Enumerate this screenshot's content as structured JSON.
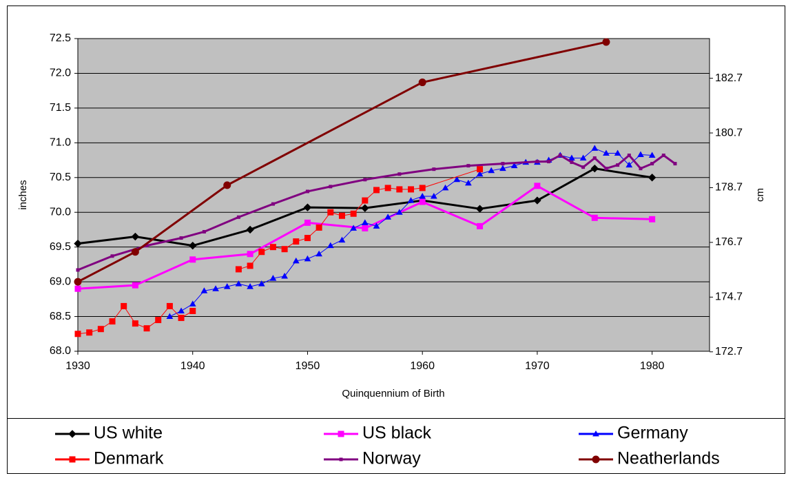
{
  "chart_data": {
    "type": "line",
    "x_label": "Quinquennium of Birth",
    "y_label": "inches",
    "y2_label": "cm",
    "xlim": [
      1930,
      1985
    ],
    "xticks": [
      1930,
      1940,
      1950,
      1960,
      1970,
      1980
    ],
    "ylim": [
      68,
      72.5
    ],
    "yticks": [
      {
        "value": 68,
        "label": "68.0"
      },
      68.5,
      {
        "value": 69,
        "label": "69.0"
      },
      69.5,
      {
        "value": 70,
        "label": "70.0"
      },
      70.5,
      {
        "value": 71,
        "label": "71.0"
      },
      71.5,
      {
        "value": 72,
        "label": "72.0"
      },
      72.5
    ],
    "y2lim": [
      172.72,
      184.15
    ],
    "y2ticks": [
      172.7,
      174.7,
      176.7,
      178.7,
      180.7,
      182.7
    ],
    "grid": true,
    "legend": "bottom",
    "series": [
      {
        "name": "US white",
        "color": "#000000",
        "marker": "diamond",
        "x": [
          1930,
          1935,
          1940,
          1945,
          1950,
          1955,
          1960,
          1965,
          1970,
          1975,
          1980
        ],
        "values": [
          69.55,
          69.65,
          69.52,
          69.75,
          70.07,
          70.06,
          70.17,
          70.05,
          70.17,
          70.63,
          70.5
        ]
      },
      {
        "name": "US black",
        "color": "#ff00ff",
        "marker": "square",
        "x": [
          1930,
          1935,
          1940,
          1945,
          1950,
          1955,
          1960,
          1965,
          1970,
          1975,
          1980
        ],
        "values": [
          68.9,
          68.95,
          69.32,
          69.4,
          69.85,
          69.77,
          70.15,
          69.8,
          70.38,
          69.92,
          69.9
        ]
      },
      {
        "name": "Germany",
        "color": "#0000ff",
        "marker": "triangle",
        "x": [
          1938,
          1939,
          1940,
          1941,
          1942,
          1943,
          1944,
          1945,
          1946,
          1947,
          1948,
          1949,
          1950,
          1951,
          1952,
          1953,
          1954,
          1955,
          1956,
          1957,
          1958,
          1959,
          1960,
          1961,
          1962,
          1963,
          1964,
          1965,
          1966,
          1967,
          1968,
          1969,
          1970,
          1971,
          1972,
          1973,
          1974,
          1975,
          1976,
          1977,
          1978,
          1979,
          1980
        ],
        "values": [
          68.5,
          68.58,
          68.68,
          68.87,
          68.9,
          68.93,
          68.97,
          68.93,
          68.97,
          69.05,
          69.08,
          69.3,
          69.33,
          69.4,
          69.52,
          69.6,
          69.77,
          69.85,
          69.8,
          69.93,
          70.0,
          70.17,
          70.23,
          70.23,
          70.35,
          70.47,
          70.42,
          70.55,
          70.6,
          70.63,
          70.67,
          70.72,
          70.72,
          70.75,
          70.82,
          70.78,
          70.78,
          70.92,
          70.85,
          70.85,
          70.68,
          70.83,
          70.82
        ]
      },
      {
        "name": "Denmark",
        "color": "#ff0000",
        "marker": "square",
        "x": [
          1930,
          1931,
          1932,
          1933,
          1934,
          1935,
          1936,
          1937,
          1938,
          1939,
          1940,
          1942,
          1944,
          1945,
          1946,
          1947,
          1948,
          1949,
          1950,
          1951,
          1952,
          1953,
          1954,
          1955,
          1956,
          1957,
          1958,
          1959,
          1960,
          1965
        ],
        "values": [
          68.25,
          68.27,
          68.32,
          68.43,
          68.65,
          68.4,
          68.33,
          68.45,
          68.65,
          68.48,
          68.58,
          null,
          69.18,
          69.23,
          69.43,
          69.5,
          69.47,
          69.58,
          69.63,
          69.78,
          70.0,
          69.95,
          69.98,
          70.17,
          70.32,
          70.35,
          70.33,
          70.33,
          70.35,
          70.62
        ]
      },
      {
        "name": "Norway",
        "color": "#800080",
        "marker": "dot",
        "x": [
          1930,
          1933,
          1936,
          1939,
          1941,
          1944,
          1947,
          1950,
          1952,
          1955,
          1958,
          1961,
          1964,
          1967,
          1970,
          1971,
          1972,
          1973,
          1974,
          1975,
          1976,
          1977,
          1978,
          1979,
          1980,
          1981,
          1982
        ],
        "values": [
          69.17,
          69.37,
          69.52,
          69.63,
          69.72,
          69.93,
          70.12,
          70.3,
          70.37,
          70.47,
          70.55,
          70.62,
          70.67,
          70.7,
          70.73,
          70.73,
          70.82,
          70.72,
          70.65,
          70.78,
          70.63,
          70.68,
          70.82,
          70.63,
          70.7,
          70.82,
          70.7
        ]
      },
      {
        "name": "Neatherlands",
        "color": "#800000",
        "marker": "circle",
        "x": [
          1930,
          1935,
          1943,
          1960,
          1976
        ],
        "values": [
          69.0,
          69.43,
          70.39,
          71.87,
          72.45
        ]
      }
    ]
  }
}
